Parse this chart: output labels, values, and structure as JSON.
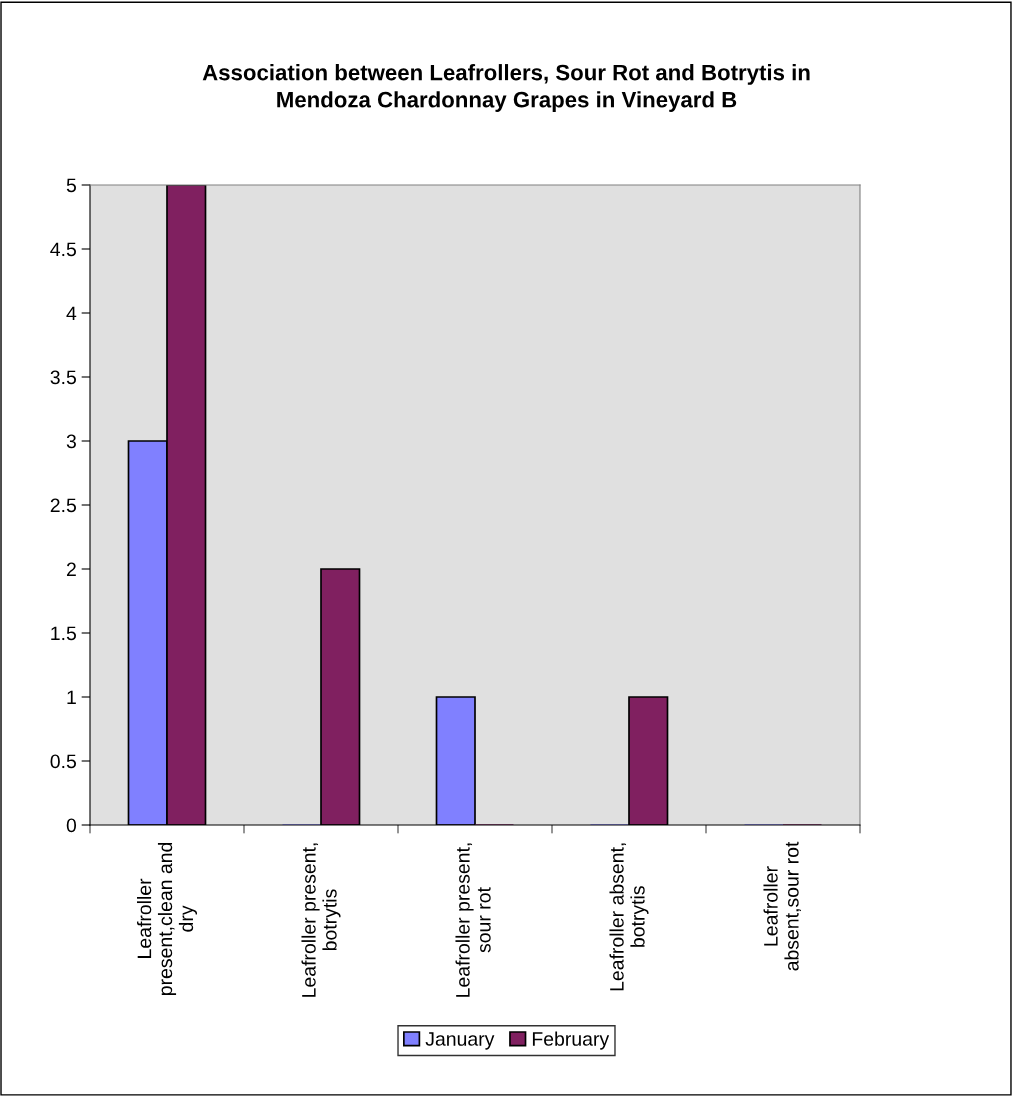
{
  "chart_data": {
    "type": "bar",
    "title": "Association between Leafrollers, Sour Rot and Botrytis in Mendoza Chardonnay Grapes in Vineyard B",
    "categories": [
      "Leafroller present,clean and dry",
      "Leafroller present, botrytis",
      "Leafroller present, sour rot",
      "Leafroller absent, botrytis",
      "Leafroller absent,sour rot"
    ],
    "series": [
      {
        "name": "January",
        "color": "#8080ff",
        "values": [
          3,
          0,
          1,
          0,
          0
        ]
      },
      {
        "name": "February",
        "color": "#802060",
        "values": [
          5,
          2,
          0,
          1,
          0
        ]
      }
    ],
    "ylim": [
      0,
      5
    ],
    "yticks": [
      0,
      0.5,
      1,
      1.5,
      2,
      2.5,
      3,
      3.5,
      4,
      4.5,
      5
    ],
    "grid": false,
    "legend": "bottom"
  }
}
